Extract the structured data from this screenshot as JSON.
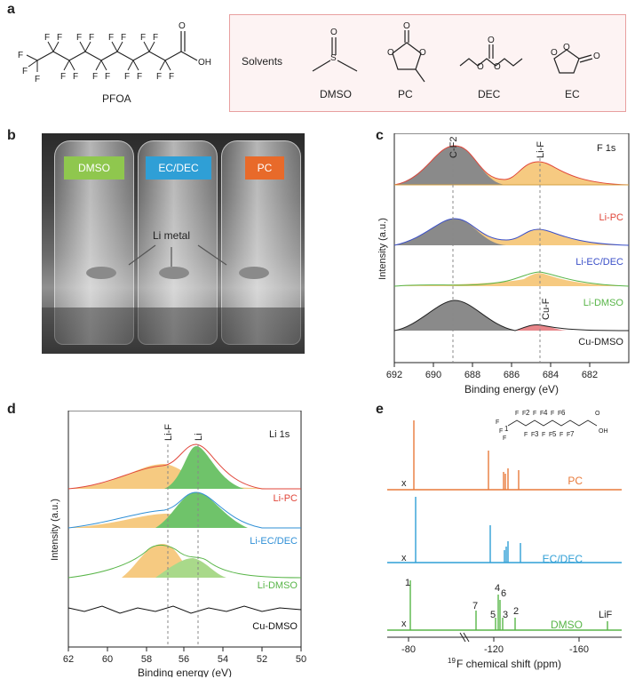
{
  "panels": {
    "a": "a",
    "b": "b",
    "c": "c",
    "d": "d",
    "e": "e"
  },
  "a": {
    "pfoa_label": "PFOA",
    "pfoa_atoms": {
      "F": "F",
      "O": "O",
      "OH": "OH"
    },
    "solvents_label": "Solvents",
    "solvents": [
      "DMSO",
      "PC",
      "DEC",
      "EC"
    ],
    "atoms": {
      "S": "S",
      "O": "O"
    }
  },
  "b": {
    "tags": [
      {
        "label": "DMSO",
        "color": "#8fc74e"
      },
      {
        "label": "EC/DEC",
        "color": "#2f9fd6"
      },
      {
        "label": "PC",
        "color": "#e86a2a"
      }
    ],
    "li_metal_label": "Li metal"
  },
  "c": {
    "title": "F 1s",
    "peak_labels": [
      "C-F2",
      "Li-F",
      "Cu-F"
    ],
    "traces": [
      {
        "label": "Li-PC",
        "color": "#e0463a"
      },
      {
        "label": "Li-EC/DEC",
        "color": "#3a4fc8"
      },
      {
        "label": "Li-DMSO",
        "color": "#58b548"
      },
      {
        "label": "Cu-DMSO",
        "color": "#222222"
      }
    ],
    "ylabel": "Intensity (a.u.)",
    "xlabel": "Binding energy (eV)",
    "xticks": [
      "692",
      "690",
      "688",
      "686",
      "684",
      "682"
    ]
  },
  "d": {
    "title": "Li 1s",
    "peak_labels": [
      "Li-F",
      "Li"
    ],
    "traces": [
      {
        "label": "Li-PC",
        "color": "#e0463a"
      },
      {
        "label": "Li-EC/DEC",
        "color": "#2f8fd6"
      },
      {
        "label": "Li-DMSO",
        "color": "#58b548"
      },
      {
        "label": "Cu-DMSO",
        "color": "#111111"
      }
    ],
    "ylabel": "Intensity (a.u.)",
    "xlabel": "Binding energy (eV)",
    "xticks": [
      "62",
      "60",
      "58",
      "56",
      "54",
      "52",
      "50"
    ]
  },
  "e": {
    "traces": [
      {
        "label": "PC",
        "color": "#e87a3a"
      },
      {
        "label": "EC/DEC",
        "color": "#2f9fd6"
      },
      {
        "label": "DMSO",
        "color": "#58b548"
      }
    ],
    "dmso_peak_labels": [
      "1",
      "7",
      "5",
      "4",
      "6",
      "3",
      "2",
      "LiF"
    ],
    "x_marker": "x",
    "xlabel_sup": "19",
    "xlabel": "F chemical shift (ppm)",
    "xticks": [
      "-80",
      "-120",
      "-160"
    ],
    "inset_atoms": [
      "F",
      "F",
      "F",
      "F",
      "F",
      "F",
      "F",
      "F",
      "F",
      "F",
      "F",
      "F",
      "F",
      "F",
      "F",
      "O",
      "OH"
    ],
    "inset_numbers": [
      "1",
      "2",
      "3",
      "4",
      "5",
      "6",
      "7"
    ]
  }
}
